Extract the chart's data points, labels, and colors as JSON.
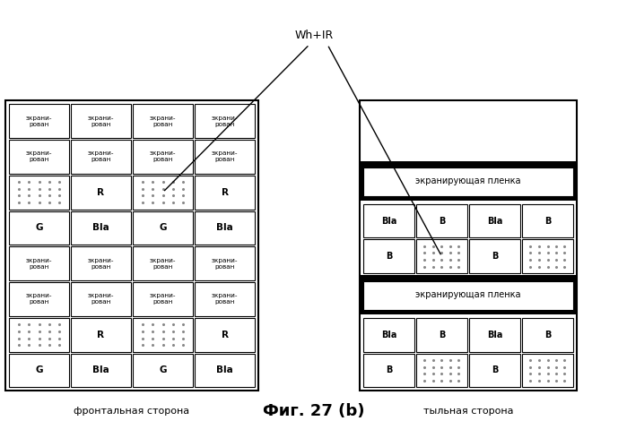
{
  "title": "Фиг. 27 (b)",
  "wh_ir_label": "Wh+IR",
  "front_label": "фронтальная сторона",
  "back_label": "тыльная сторона",
  "screen_film_text": "экранирующая пленка",
  "bg_color": "#ffffff",
  "border_color": "#000000",
  "cell_size": 0.9,
  "dot_pattern_color": "#aaaaaa"
}
